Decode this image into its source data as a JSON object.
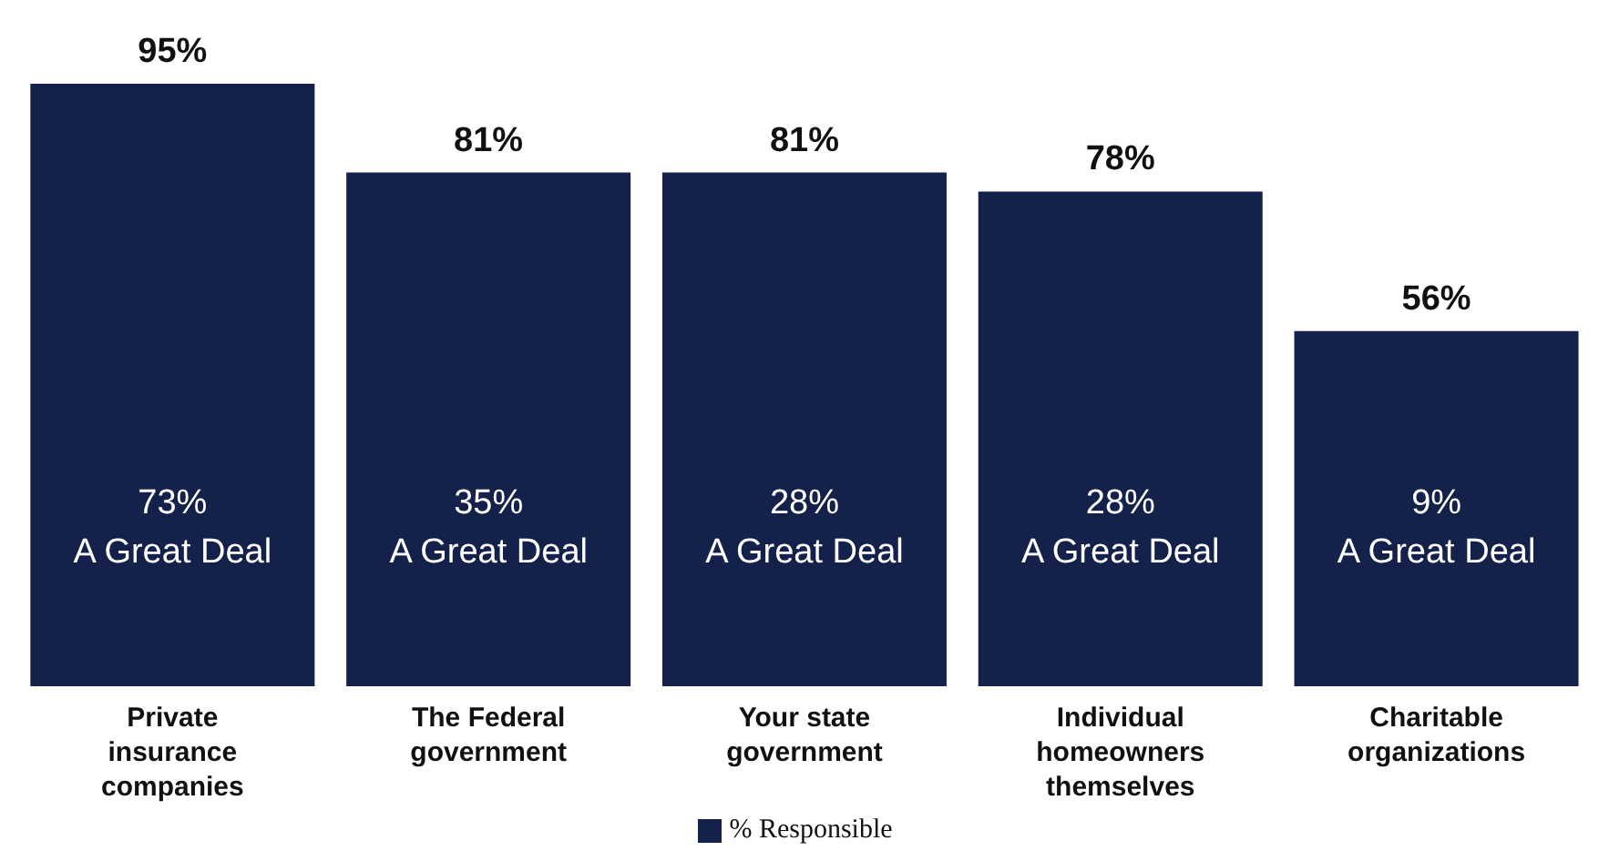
{
  "chart_data": {
    "type": "bar",
    "categories": [
      "Private insurance companies",
      "The Federal government",
      "Your state government",
      "Individual homeowners themselves",
      "Charitable organizations"
    ],
    "series": [
      {
        "name": "% Responsible",
        "color": "#14214a",
        "values": [
          95,
          81,
          81,
          78,
          56
        ],
        "value_labels": [
          "95%",
          "81%",
          "81%",
          "78%",
          "56%"
        ]
      }
    ],
    "tick_labels": "x",
    "annotations": [
      "73%\nA Great Deal",
      "35%\nA Great Deal",
      "28%\nA Great Deal",
      "28%\nA Great Deal",
      "9%\nA Great Deal"
    ],
    "legend": "bottom",
    "grid": false
  }
}
